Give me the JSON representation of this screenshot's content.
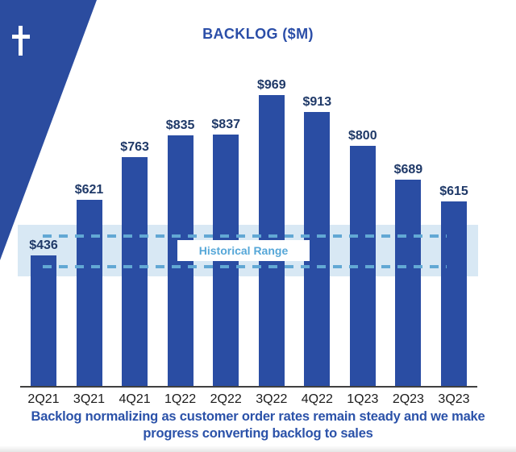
{
  "chart_data": {
    "type": "bar",
    "title": "BACKLOG ($M)",
    "categories": [
      "2Q21",
      "3Q21",
      "4Q21",
      "1Q22",
      "2Q22",
      "3Q22",
      "4Q22",
      "1Q23",
      "2Q23",
      "3Q23"
    ],
    "values": [
      436,
      621,
      763,
      835,
      837,
      969,
      913,
      800,
      689,
      615
    ],
    "value_prefix": "$",
    "xlabel": "",
    "ylabel": "",
    "grid": false,
    "legend": false,
    "y_axis_visible": false,
    "annotation": {
      "label": "Historical Range",
      "band_range": [
        367,
        538
      ],
      "dash_values": [
        400,
        500
      ]
    }
  },
  "caption": {
    "line1": "Backlog normalizing as customer order rates remain steady and we make",
    "line2": "progress converting backlog to sales"
  },
  "icons": {
    "corner": "cross-icon"
  },
  "colors": {
    "bar": "#2A4DA3",
    "triangle": "#2B4C9F",
    "value_label": "#1F3968",
    "title": "#2B4EA8",
    "caption": "#2B52A9",
    "band": "#D8E8F4",
    "dash": "#62A8D4",
    "range_label_text": "#56A7D8",
    "axis": "#404040",
    "x_label": "#1A1A1A",
    "cross": "#FFFFFF"
  }
}
